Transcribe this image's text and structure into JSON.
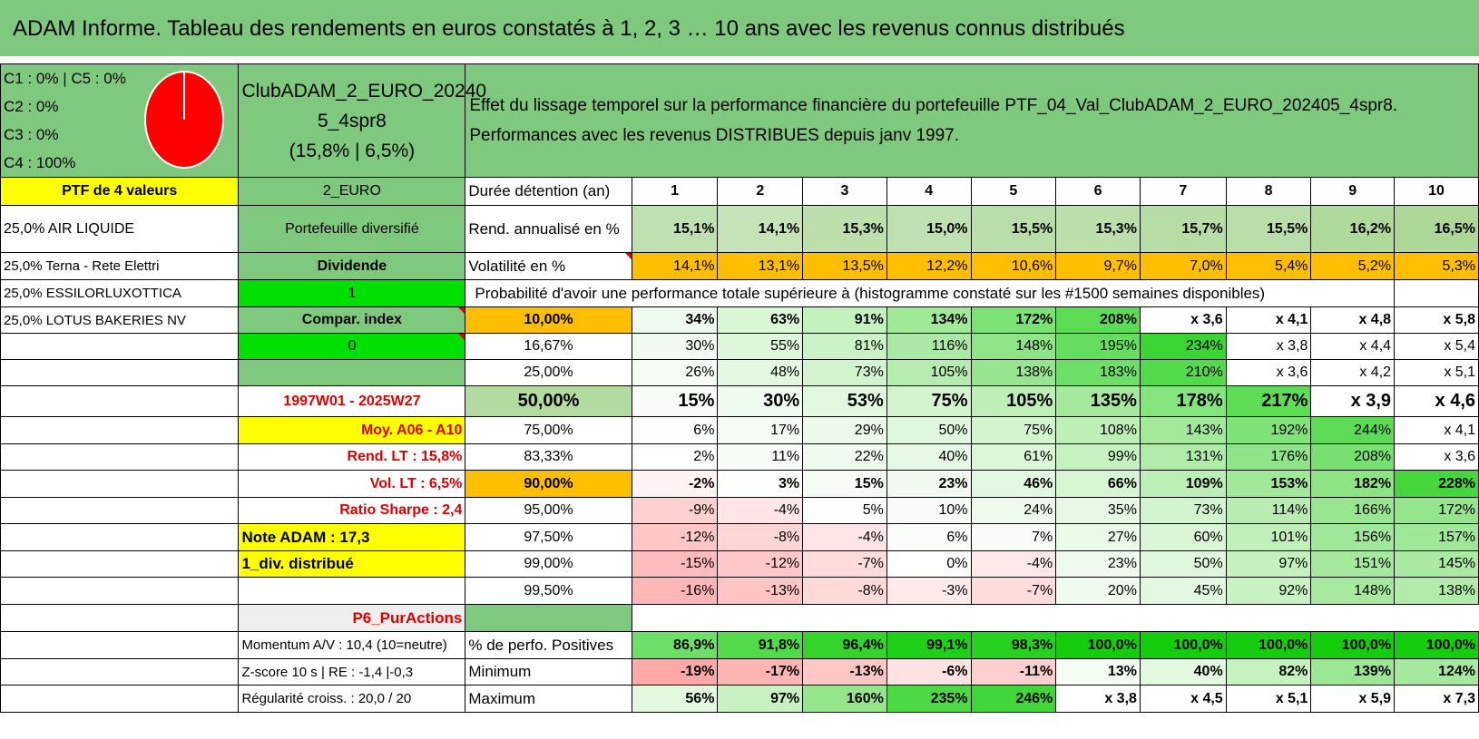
{
  "title": "ADAM Informe. Tableau des rendements en euros constatés à 1, 2, 3 … 10 ans avec les revenus connus distribués",
  "allocation": {
    "lines": [
      "C1 : 0% | C5 : 0%",
      "C2 : 0%",
      "C3 : 0%",
      "C4 : 100%"
    ],
    "pie_slices": [
      {
        "label": "C4",
        "value": 100,
        "color": "#ff0000"
      }
    ]
  },
  "portfolio": {
    "name_line1": "ClubADAM_2_EURO_20240",
    "name_line2": "5_4spr8",
    "name_line3": "(15,8% | 6,5%)",
    "description_line1": "Effet du lissage temporel sur la performance financière du portefeuille PTF_04_Val_ClubADAM_2_EURO_202405_4spr8.",
    "description_line2": "Performances avec les revenus DISTRIBUES depuis janv 1997."
  },
  "holdings_header": "PTF de 4 valeurs",
  "holdings": [
    "25,0% AIR LIQUIDE",
    "25,0% Terna - Rete Elettri",
    "25,0% ESSILORLUXOTTICA",
    "25,0% LOTUS BAKERIES NV"
  ],
  "info": {
    "currency": "2_EURO",
    "type": "Portefeuille diversifié",
    "category": "Dividende",
    "value_1": "1",
    "compar_label": "Compar. index",
    "value_0": "0",
    "period": "1997W01 - 2025W27",
    "moy": "Moy. A06 - A10",
    "rend_lt": "Rend. LT : 15,8%",
    "vol_lt": "Vol. LT : 6,5%",
    "sharpe": "Ratio Sharpe : 2,4",
    "note": "Note ADAM : 17,3",
    "div": "1_div. distribué",
    "strategy": "P6_PurActions",
    "momentum": "Momentum A/V : 10,4 (10=neutre)",
    "zscore": "Z-score 10 s | RE : -1,4 |-0,3",
    "regularite": "Régularité croiss. : 20,0 / 20"
  },
  "labels": {
    "duration": "Durée détention (an)",
    "rend": "Rend. annualisé en %",
    "vol": "Volatilité en %",
    "prob_header": "Probabilité d'avoir une performance totale supérieure à (histogramme constaté sur les #1500 semaines disponibles)",
    "positive": "% de perfo. Positives",
    "minimum": "Minimum",
    "maximum": "Maximum"
  },
  "durations": [
    "1",
    "2",
    "3",
    "4",
    "5",
    "6",
    "7",
    "8",
    "9",
    "10"
  ],
  "rend_annualise": [
    "15,1%",
    "14,1%",
    "15,3%",
    "15,0%",
    "15,5%",
    "15,3%",
    "15,7%",
    "15,5%",
    "16,2%",
    "16,5%"
  ],
  "volatilite": [
    "14,1%",
    "13,1%",
    "13,5%",
    "12,2%",
    "10,6%",
    "9,7%",
    "7,0%",
    "5,4%",
    "5,2%",
    "5,3%"
  ],
  "prob_rows": [
    {
      "p": "10,00%",
      "v": [
        "34%",
        "63%",
        "91%",
        "134%",
        "172%",
        "208%",
        "x 3,6",
        "x 4,1",
        "x 4,8",
        "x 5,8"
      ]
    },
    {
      "p": "16,67%",
      "v": [
        "30%",
        "55%",
        "81%",
        "116%",
        "148%",
        "195%",
        "234%",
        "x 3,8",
        "x 4,4",
        "x 5,4"
      ]
    },
    {
      "p": "25,00%",
      "v": [
        "26%",
        "48%",
        "73%",
        "105%",
        "138%",
        "183%",
        "210%",
        "x 3,6",
        "x 4,2",
        "x 5,1"
      ]
    },
    {
      "p": "50,00%",
      "v": [
        "15%",
        "30%",
        "53%",
        "75%",
        "105%",
        "135%",
        "178%",
        "217%",
        "x 3,9",
        "x 4,6"
      ]
    },
    {
      "p": "75,00%",
      "v": [
        "6%",
        "17%",
        "29%",
        "50%",
        "75%",
        "108%",
        "143%",
        "192%",
        "244%",
        "x 4,1"
      ]
    },
    {
      "p": "83,33%",
      "v": [
        "2%",
        "11%",
        "22%",
        "40%",
        "61%",
        "99%",
        "131%",
        "176%",
        "208%",
        "x 3,6"
      ]
    },
    {
      "p": "90,00%",
      "v": [
        "-2%",
        "3%",
        "15%",
        "23%",
        "46%",
        "66%",
        "109%",
        "153%",
        "182%",
        "228%"
      ]
    },
    {
      "p": "95,00%",
      "v": [
        "-9%",
        "-4%",
        "5%",
        "10%",
        "24%",
        "35%",
        "73%",
        "114%",
        "166%",
        "172%"
      ]
    },
    {
      "p": "97,50%",
      "v": [
        "-12%",
        "-8%",
        "-4%",
        "6%",
        "7%",
        "27%",
        "60%",
        "101%",
        "156%",
        "157%"
      ]
    },
    {
      "p": "99,00%",
      "v": [
        "-15%",
        "-12%",
        "-7%",
        "0%",
        "-4%",
        "23%",
        "50%",
        "97%",
        "151%",
        "145%"
      ]
    },
    {
      "p": "99,50%",
      "v": [
        "-16%",
        "-13%",
        "-8%",
        "-3%",
        "-7%",
        "20%",
        "45%",
        "92%",
        "148%",
        "138%"
      ]
    }
  ],
  "positives": [
    "86,9%",
    "91,8%",
    "96,4%",
    "99,1%",
    "98,3%",
    "100,0%",
    "100,0%",
    "100,0%",
    "100,0%",
    "100,0%"
  ],
  "minimum": [
    "-19%",
    "-17%",
    "-13%",
    "-6%",
    "-11%",
    "13%",
    "40%",
    "82%",
    "139%",
    "124%"
  ],
  "maximum": [
    "56%",
    "97%",
    "160%",
    "235%",
    "246%",
    "x 3,8",
    "x 4,5",
    "x 5,1",
    "x 5,9",
    "x 7,3"
  ],
  "colors": {
    "header_green": "#7fc97f",
    "yellow": "#ffff00",
    "orange": "#ffbf00",
    "bright_green": "#00e000",
    "pie_red": "#ff0000"
  }
}
